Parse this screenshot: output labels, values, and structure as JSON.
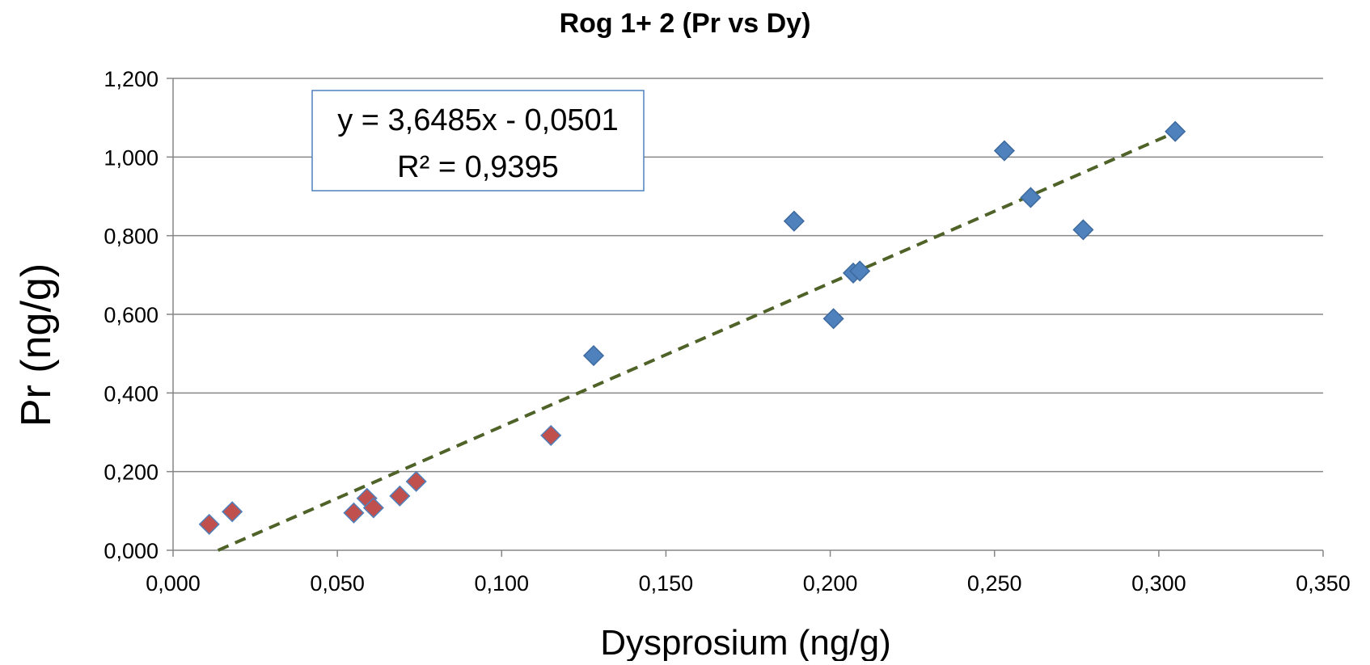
{
  "chart_data": {
    "type": "scatter",
    "title": "Rog 1+ 2 (Pr vs Dy)",
    "xlabel": "Dysprosium (ng/g)",
    "ylabel": "Pr (ng/g)",
    "xlim": [
      0,
      0.35
    ],
    "ylim": [
      0,
      1.2
    ],
    "x_ticks": [
      "0,000",
      "0,050",
      "0,100",
      "0,150",
      "0,200",
      "0,250",
      "0,300",
      "0,350"
    ],
    "y_ticks": [
      "0,000",
      "0,200",
      "0,400",
      "0,600",
      "0,800",
      "1,000",
      "1,200"
    ],
    "grid": "horizontal",
    "marker": "diamond",
    "series": [
      {
        "color": "#4f81bd",
        "points": [
          {
            "x": 0.128,
            "y": 0.495
          },
          {
            "x": 0.189,
            "y": 0.837
          },
          {
            "x": 0.201,
            "y": 0.589
          },
          {
            "x": 0.207,
            "y": 0.705
          },
          {
            "x": 0.209,
            "y": 0.71
          },
          {
            "x": 0.253,
            "y": 1.016
          },
          {
            "x": 0.261,
            "y": 0.897
          },
          {
            "x": 0.277,
            "y": 0.815
          },
          {
            "x": 0.305,
            "y": 1.065
          }
        ]
      },
      {
        "color": "#c0504d",
        "points": [
          {
            "x": 0.011,
            "y": 0.066
          },
          {
            "x": 0.018,
            "y": 0.098
          },
          {
            "x": 0.055,
            "y": 0.095
          },
          {
            "x": 0.059,
            "y": 0.132
          },
          {
            "x": 0.061,
            "y": 0.108
          },
          {
            "x": 0.069,
            "y": 0.138
          },
          {
            "x": 0.074,
            "y": 0.175
          },
          {
            "x": 0.115,
            "y": 0.292
          }
        ]
      }
    ],
    "trendline": {
      "type": "linear",
      "slope": 3.6485,
      "intercept": -0.0501,
      "x_range": [
        0.0137,
        0.305
      ],
      "color": "#4f6228",
      "style": "dashed",
      "equation": "y = 3,6485x - 0,0501",
      "r_squared": "R² = 0,9395"
    }
  }
}
